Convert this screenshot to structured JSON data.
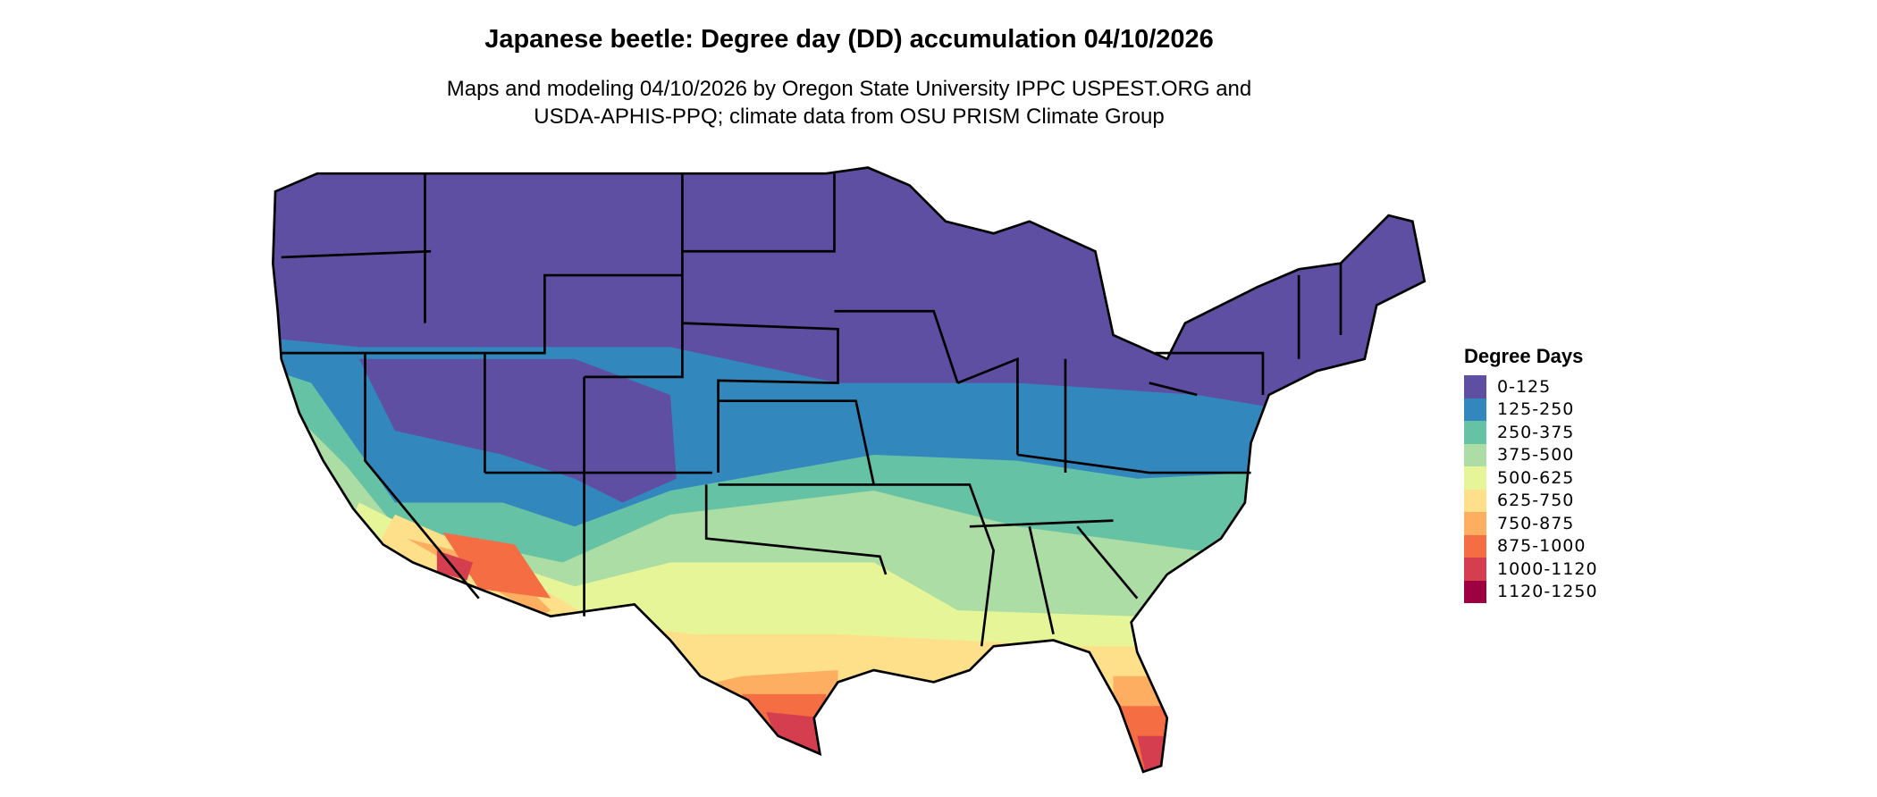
{
  "title": "Japanese beetle: Degree day (DD) accumulation 04/10/2026",
  "subtitle_line1": "Maps and modeling 04/10/2026 by Oregon State University IPPC USPEST.ORG and",
  "subtitle_line2": "USDA-APHIS-PPQ; climate data from OSU PRISM Climate Group",
  "legend": {
    "title": "Degree Days",
    "items": [
      {
        "label": "0-125",
        "color": "#5E4FA2"
      },
      {
        "label": "125-250",
        "color": "#3288BD"
      },
      {
        "label": "250-375",
        "color": "#66C2A5"
      },
      {
        "label": "375-500",
        "color": "#ABDDA4"
      },
      {
        "label": "500-625",
        "color": "#E6F598"
      },
      {
        "label": "625-750",
        "color": "#FEE08B"
      },
      {
        "label": "750-875",
        "color": "#FDAE61"
      },
      {
        "label": "875-1000",
        "color": "#F46D43"
      },
      {
        "label": "1000-1120",
        "color": "#D53E4F"
      },
      {
        "label": "1120-1250",
        "color": "#9E0142"
      }
    ]
  }
}
